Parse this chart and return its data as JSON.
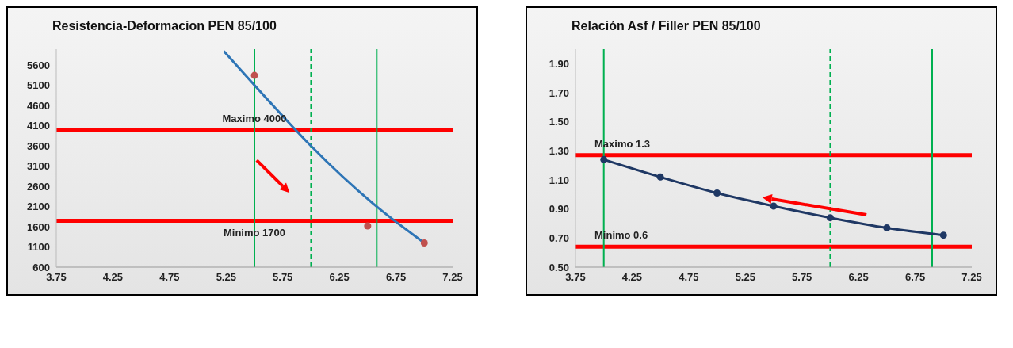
{
  "chart_data": [
    {
      "type": "scatter",
      "title": "Resistencia-Deformacion PEN 85/100",
      "xlim": [
        3.75,
        7.25
      ],
      "xticks": [
        3.75,
        4.25,
        4.75,
        5.25,
        5.75,
        6.25,
        6.75,
        7.25
      ],
      "ylim": [
        600,
        6000
      ],
      "yticks": [
        600,
        1100,
        1600,
        2100,
        2600,
        3100,
        3600,
        4100,
        4600,
        5100,
        5600
      ],
      "series": [
        {
          "color": "#c0504d",
          "marker": "circle",
          "x": [
            5.5,
            6.5,
            7.0
          ],
          "values": [
            5350,
            1620,
            1200
          ]
        },
        {
          "type": "line",
          "color": "#2e75b6",
          "marker": "none",
          "x": [
            5.23,
            5.6,
            6.0,
            6.58,
            7.0
          ],
          "values": [
            5950,
            4800,
            3600,
            2100,
            1200
          ]
        }
      ],
      "ref_lines": [
        {
          "axis": "y",
          "value": 4000,
          "label": "Maximo 4000",
          "color": "#ff0000"
        },
        {
          "axis": "y",
          "value": 1750,
          "label": "Minimo 1700",
          "color": "#ff0000"
        },
        {
          "axis": "x",
          "value": 5.5,
          "color": "#00b050",
          "line_style": "solid"
        },
        {
          "axis": "x",
          "value": 6.0,
          "color": "#00b050",
          "line_style": "dashed"
        },
        {
          "axis": "x",
          "value": 6.58,
          "color": "#00b050",
          "line_style": "solid"
        }
      ]
    },
    {
      "type": "line",
      "title": "Relación Asf / Filler PEN 85/100",
      "xlim": [
        3.75,
        7.25
      ],
      "xticks": [
        3.75,
        4.25,
        4.75,
        5.25,
        5.75,
        6.25,
        6.75,
        7.25
      ],
      "ylim": [
        0.5,
        2.0
      ],
      "yticks": [
        {
          "value": 0.5,
          "label": "0.50"
        },
        {
          "value": 0.7,
          "label": "0.70"
        },
        {
          "value": 0.9,
          "label": "0.90"
        },
        {
          "value": 1.1,
          "label": "1.10"
        },
        {
          "value": 1.3,
          "label": "1.30"
        },
        {
          "value": 1.5,
          "label": "1.50"
        },
        {
          "value": 1.7,
          "label": "1.70"
        },
        {
          "value": 1.9,
          "label": "1.90"
        }
      ],
      "series": [
        {
          "color": "#1f3864",
          "marker": "circle",
          "x": [
            4.0,
            4.5,
            5.0,
            5.5,
            6.0,
            6.5,
            7.0
          ],
          "values": [
            1.24,
            1.12,
            1.01,
            0.92,
            0.84,
            0.77,
            0.72
          ]
        }
      ],
      "ref_lines": [
        {
          "axis": "y",
          "value": 1.27,
          "label": "Maximo 1.3",
          "color": "#ff0000"
        },
        {
          "axis": "y",
          "value": 0.64,
          "label": "Minimo 0.6",
          "color": "#ff0000"
        },
        {
          "axis": "x",
          "value": 4.0,
          "color": "#00b050",
          "line_style": "solid"
        },
        {
          "axis": "x",
          "value": 6.0,
          "color": "#00b050",
          "line_style": "dashed"
        },
        {
          "axis": "x",
          "value": 6.9,
          "color": "#00b050",
          "line_style": "solid"
        }
      ]
    }
  ]
}
